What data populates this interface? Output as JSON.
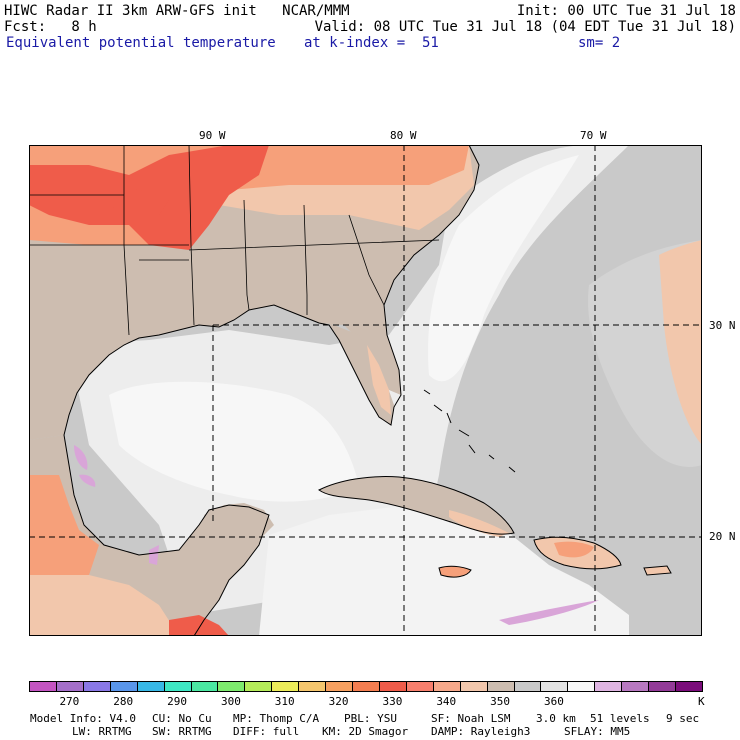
{
  "header": {
    "line1_left": "HIWC Radar II 3km ARW-GFS init   NCAR/MMM",
    "line1_right": "Init: 00 UTC Tue 31 Jul 18",
    "fcst": "Fcst:   8 h",
    "valid": "Valid: 08 UTC Tue 31 Jul 18 (04 EDT Tue 31 Jul 18)",
    "field": "Equivalent potential temperature",
    "level": "at k-index =  51",
    "smoothing": "sm= 2"
  },
  "map": {
    "longitude_labels": [
      "90 W",
      "80 W",
      "70 W"
    ],
    "latitude_labels": [
      "30 N",
      "20 N"
    ],
    "colors": {
      "land_warm": "#f6a07a",
      "land_hot": "#ef5c4a",
      "land_mild": "#f2c7ac",
      "land_cool": "#cdbdb0",
      "ocean_gray": "#c9c9c9",
      "ocean_light": "#ededed",
      "ocean_white": "#f7f7f7",
      "lavender": "#d9a5d8"
    }
  },
  "colorbar": {
    "colors": [
      "#c455c2",
      "#a46fc9",
      "#8a78e6",
      "#5a96ea",
      "#38b8e6",
      "#3ee7c4",
      "#4be8a2",
      "#7eea6e",
      "#b5ec5a",
      "#ecec5a",
      "#f5c66e",
      "#f6a060",
      "#f37e51",
      "#ef5c4a",
      "#f77f6d",
      "#f6a98b",
      "#f2c7ac",
      "#cdbdb0",
      "#c9c9c9",
      "#e3e3e3",
      "#f7f7f7",
      "#dfb5e2",
      "#b879c1",
      "#933b98",
      "#7b0d7b"
    ],
    "tick_labels": [
      "270",
      "280",
      "290",
      "300",
      "310",
      "320",
      "330",
      "340",
      "350",
      "360"
    ],
    "units": "K"
  },
  "footer": {
    "line1": [
      "Model Info: V4.0",
      "CU: No Cu",
      "MP: Thomp C/A",
      "PBL: YSU",
      "SF: Noah LSM",
      "3.0 km",
      "51 levels",
      "9 sec"
    ],
    "line2": [
      "LW: RRTMG",
      "SW: RRTMG",
      "DIFF: full",
      "KM: 2D Smagor",
      "DAMP: Rayleigh3",
      "SFLAY: MM5"
    ]
  }
}
